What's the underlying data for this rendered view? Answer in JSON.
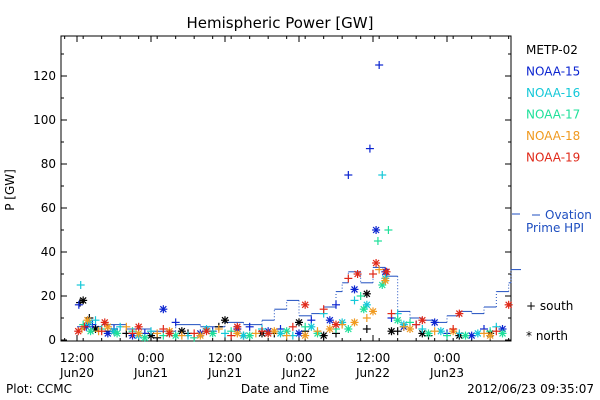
{
  "chart_data": {
    "type": "scatter",
    "title": "Hemispheric Power [GW]",
    "ylabel": "P [GW]",
    "xlabel": "Date and Time",
    "ylim": [
      0,
      140
    ],
    "yticks": [
      0,
      20,
      40,
      60,
      80,
      100,
      120
    ],
    "xrange_hours": [
      0,
      72
    ],
    "xticks": [
      {
        "h": 0,
        "time": "12:00",
        "date": "Jun20"
      },
      {
        "h": 12,
        "time": "0:00",
        "date": "Jun21"
      },
      {
        "h": 24,
        "time": "12:00",
        "date": "Jun21"
      },
      {
        "h": 36,
        "time": "0:00",
        "date": "Jun22"
      },
      {
        "h": 48,
        "time": "12:00",
        "date": "Jun22"
      },
      {
        "h": 60,
        "time": "0:00",
        "date": "Jun23"
      }
    ],
    "series": [
      {
        "name": "METP-02",
        "color": "#000000",
        "south": [
          [
            0.5,
            17
          ],
          [
            2,
            10
          ],
          [
            5,
            4
          ],
          [
            8,
            3
          ],
          [
            13,
            1
          ],
          [
            18,
            3
          ],
          [
            23,
            6
          ],
          [
            27,
            2
          ],
          [
            32,
            3
          ],
          [
            37,
            4
          ],
          [
            42,
            3
          ],
          [
            47,
            5
          ],
          [
            52,
            4
          ],
          [
            57,
            2
          ]
        ],
        "north": [
          [
            1,
            18
          ],
          [
            3,
            5
          ],
          [
            6,
            4
          ],
          [
            12,
            2
          ],
          [
            17,
            4
          ],
          [
            24,
            9
          ],
          [
            30,
            3
          ],
          [
            36,
            8
          ],
          [
            40,
            2
          ],
          [
            47,
            21
          ],
          [
            51,
            4
          ],
          [
            56,
            3
          ],
          [
            62,
            2
          ],
          [
            67,
            3
          ]
        ]
      },
      {
        "name": "NOAA-15",
        "color": "#0b24d0",
        "south": [
          [
            0.3,
            16
          ],
          [
            2.5,
            7
          ],
          [
            6,
            5
          ],
          [
            11,
            3
          ],
          [
            16,
            8
          ],
          [
            22,
            4
          ],
          [
            28,
            6
          ],
          [
            33,
            5
          ],
          [
            38,
            9
          ],
          [
            42,
            16
          ],
          [
            44,
            75
          ],
          [
            47.5,
            87
          ],
          [
            49,
            125
          ],
          [
            51,
            10
          ],
          [
            55,
            7
          ],
          [
            60,
            3
          ],
          [
            66,
            5
          ]
        ],
        "north": [
          [
            1.5,
            6
          ],
          [
            5,
            3
          ],
          [
            9,
            2
          ],
          [
            14,
            14
          ],
          [
            20,
            3
          ],
          [
            26,
            5
          ],
          [
            31,
            4
          ],
          [
            36,
            3
          ],
          [
            41,
            9
          ],
          [
            45,
            23
          ],
          [
            48.5,
            50
          ],
          [
            50,
            31
          ],
          [
            53,
            6
          ],
          [
            58,
            8
          ],
          [
            64,
            2
          ],
          [
            69,
            5
          ]
        ]
      },
      {
        "name": "NOAA-16",
        "color": "#14c8d8",
        "south": [
          [
            0.6,
            25
          ],
          [
            3,
            9
          ],
          [
            7,
            6
          ],
          [
            12,
            4
          ],
          [
            18,
            2
          ],
          [
            24,
            3
          ],
          [
            30,
            5
          ],
          [
            35,
            2
          ],
          [
            40,
            12
          ],
          [
            45,
            18
          ],
          [
            49.5,
            75
          ],
          [
            52,
            12
          ],
          [
            56,
            5
          ],
          [
            62,
            3
          ],
          [
            68,
            6
          ]
        ],
        "north": [
          [
            2,
            8
          ],
          [
            6,
            4
          ],
          [
            10,
            2
          ],
          [
            15,
            3
          ],
          [
            21,
            5
          ],
          [
            27,
            2
          ],
          [
            33,
            3
          ],
          [
            38,
            6
          ],
          [
            43,
            8
          ],
          [
            47,
            16
          ],
          [
            50,
            28
          ],
          [
            53,
            7
          ],
          [
            59,
            4
          ],
          [
            65,
            3
          ]
        ]
      },
      {
        "name": "NOAA-17",
        "color": "#1ee09a",
        "south": [
          [
            1,
            7
          ],
          [
            4,
            5
          ],
          [
            9,
            4
          ],
          [
            14,
            2
          ],
          [
            19,
            1
          ],
          [
            25,
            4
          ],
          [
            31,
            3
          ],
          [
            37,
            6
          ],
          [
            42,
            5
          ],
          [
            46,
            20
          ],
          [
            48.8,
            45
          ],
          [
            50.5,
            50
          ],
          [
            54,
            8
          ],
          [
            60,
            2
          ],
          [
            67,
            4
          ]
        ],
        "north": [
          [
            2.2,
            4
          ],
          [
            6.5,
            3
          ],
          [
            11,
            1
          ],
          [
            16,
            2
          ],
          [
            22,
            3
          ],
          [
            28,
            2
          ],
          [
            34,
            4
          ],
          [
            39,
            3
          ],
          [
            44,
            5
          ],
          [
            46.5,
            14
          ],
          [
            49.5,
            25
          ],
          [
            52,
            9
          ],
          [
            57,
            3
          ],
          [
            63,
            2
          ],
          [
            69,
            3
          ]
        ]
      },
      {
        "name": "NOAA-18",
        "color": "#f09a20",
        "south": [
          [
            0.8,
            5
          ],
          [
            3.5,
            4
          ],
          [
            8,
            6
          ],
          [
            13,
            3
          ],
          [
            17,
            2
          ],
          [
            23,
            5
          ],
          [
            29,
            3
          ],
          [
            34,
            2
          ],
          [
            39,
            4
          ],
          [
            43,
            7
          ],
          [
            47,
            10
          ],
          [
            49,
            32
          ],
          [
            53,
            6
          ],
          [
            58,
            4
          ],
          [
            66,
            3
          ]
        ],
        "north": [
          [
            1.7,
            9
          ],
          [
            5,
            6
          ],
          [
            10,
            3
          ],
          [
            15,
            4
          ],
          [
            20,
            2
          ],
          [
            26,
            3
          ],
          [
            32,
            4
          ],
          [
            37,
            2
          ],
          [
            41,
            5
          ],
          [
            45,
            8
          ],
          [
            48,
            13
          ],
          [
            50,
            27
          ],
          [
            54,
            5
          ],
          [
            61,
            4
          ],
          [
            67,
            2
          ]
        ]
      },
      {
        "name": "NOAA-19",
        "color": "#e02818",
        "south": [
          [
            1.2,
            6
          ],
          [
            4,
            4
          ],
          [
            9,
            3
          ],
          [
            14,
            5
          ],
          [
            19,
            3
          ],
          [
            25,
            2
          ],
          [
            30,
            4
          ],
          [
            35,
            6
          ],
          [
            40,
            14
          ],
          [
            44,
            28
          ],
          [
            48,
            30
          ],
          [
            51,
            12
          ],
          [
            55,
            7
          ],
          [
            61,
            5
          ],
          [
            68,
            4
          ]
        ],
        "north": [
          [
            0.2,
            4
          ],
          [
            4.5,
            8
          ],
          [
            10,
            6
          ],
          [
            15,
            3
          ],
          [
            21,
            4
          ],
          [
            26,
            6
          ],
          [
            31,
            3
          ],
          [
            37,
            16
          ],
          [
            42,
            7
          ],
          [
            45.5,
            30
          ],
          [
            48.5,
            35
          ],
          [
            50.2,
            31
          ],
          [
            56,
            9
          ],
          [
            62,
            12
          ],
          [
            70,
            16
          ]
        ]
      }
    ],
    "ovation": {
      "name_line1": "Ovation",
      "name_line2": "Prime HPI",
      "color": "#1f4fc0",
      "steps": [
        [
          0,
          6
        ],
        [
          4,
          7
        ],
        [
          8,
          5
        ],
        [
          12,
          4
        ],
        [
          16,
          7
        ],
        [
          20,
          6
        ],
        [
          24,
          8
        ],
        [
          27,
          7
        ],
        [
          30,
          9
        ],
        [
          32,
          14
        ],
        [
          34,
          18
        ],
        [
          36,
          11
        ],
        [
          38,
          12
        ],
        [
          40,
          15
        ],
        [
          42,
          22
        ],
        [
          43,
          26
        ],
        [
          44,
          31
        ],
        [
          46,
          26
        ],
        [
          48,
          33
        ],
        [
          50,
          29
        ],
        [
          52,
          13
        ],
        [
          54,
          10
        ],
        [
          56,
          9
        ],
        [
          58,
          8
        ],
        [
          60,
          11
        ],
        [
          62,
          13
        ],
        [
          64,
          12
        ],
        [
          66,
          15
        ],
        [
          68,
          22
        ],
        [
          70,
          26
        ],
        [
          72,
          32
        ]
      ]
    },
    "symbol_key": [
      {
        "symbol": "+",
        "label": "south"
      },
      {
        "symbol": "*",
        "label": "north"
      }
    ]
  },
  "footer": {
    "credit": "Plot: CCMC",
    "timestamp": "2012/06/23 09:35:07"
  }
}
